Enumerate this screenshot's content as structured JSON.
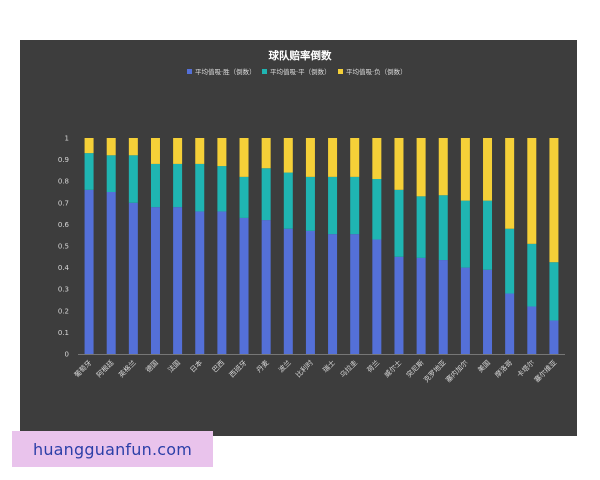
{
  "watermark": {
    "text": "huangguanfun.com"
  },
  "chart_data": {
    "type": "bar",
    "stacked": true,
    "title": "球队赔率倒数",
    "xlabel": "",
    "ylabel": "",
    "ylim": [
      0,
      1
    ],
    "yticks": [
      "0",
      "0.1",
      "0.2",
      "0.3",
      "0.4",
      "0.5",
      "0.6",
      "0.7",
      "0.8",
      "0.9",
      "1"
    ],
    "grid": false,
    "legend_position": "top",
    "background": "#3d3d3d",
    "categories": [
      "葡萄牙",
      "阿根廷",
      "英格兰",
      "德国",
      "法国",
      "日本",
      "巴西",
      "西班牙",
      "丹麦",
      "波兰",
      "比利时",
      "瑞士",
      "乌拉圭",
      "荷兰",
      "威尔士",
      "突尼斯",
      "克罗地亚",
      "塞内加尔",
      "美国",
      "摩洛哥",
      "卡塔尔",
      "塞尔维亚"
    ],
    "series": [
      {
        "name": "平均值吸·胜（倒数）",
        "color": "#5470d8",
        "values": [
          0.76,
          0.75,
          0.7,
          0.68,
          0.68,
          0.66,
          0.66,
          0.63,
          0.62,
          0.58,
          0.57,
          0.555,
          0.555,
          0.53,
          0.45,
          0.445,
          0.435,
          0.4,
          0.39,
          0.28,
          0.22,
          0.155
        ]
      },
      {
        "name": "平均值吸·平（倒数）",
        "color": "#1fb5b2",
        "values": [
          0.17,
          0.17,
          0.22,
          0.2,
          0.2,
          0.22,
          0.21,
          0.19,
          0.24,
          0.26,
          0.25,
          0.265,
          0.265,
          0.28,
          0.31,
          0.285,
          0.3,
          0.31,
          0.32,
          0.3,
          0.29,
          0.27
        ]
      },
      {
        "name": "平均值吸·负（倒数）",
        "color": "#f5d038",
        "values": [
          0.07,
          0.08,
          0.08,
          0.12,
          0.12,
          0.12,
          0.13,
          0.18,
          0.14,
          0.16,
          0.18,
          0.18,
          0.18,
          0.19,
          0.24,
          0.27,
          0.265,
          0.29,
          0.29,
          0.42,
          0.49,
          0.575
        ]
      }
    ]
  }
}
